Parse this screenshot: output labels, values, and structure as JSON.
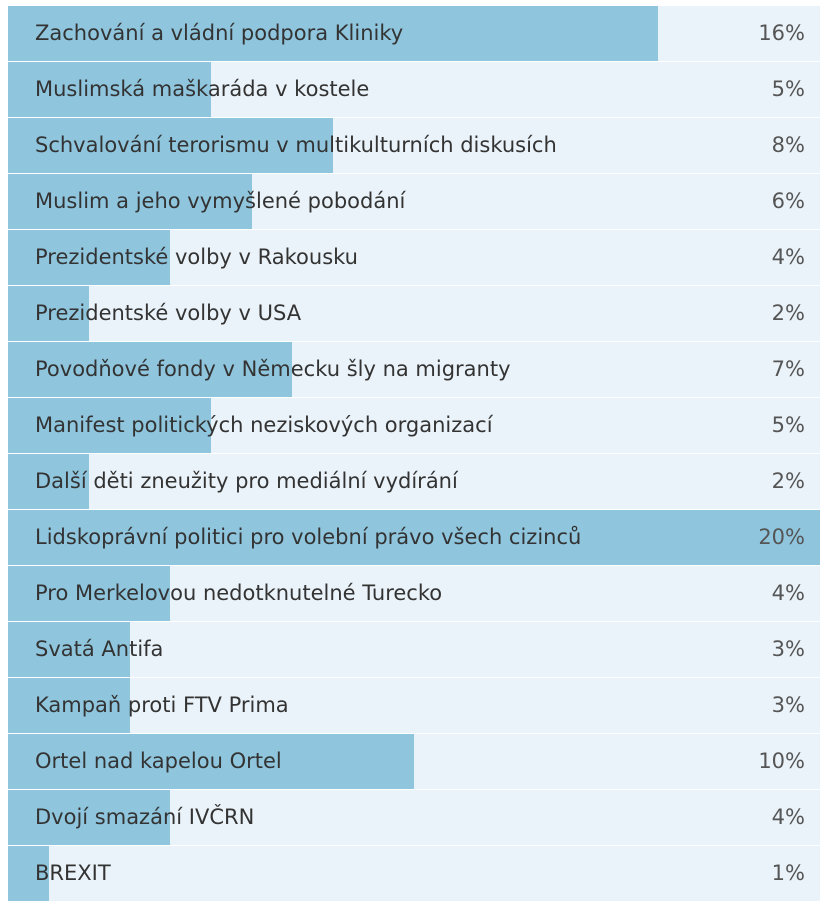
{
  "chart_data": {
    "type": "bar",
    "orientation": "horizontal",
    "categories": [
      "Zachování a vládní podpora Kliniky",
      "Muslimská maškaráda v kostele",
      "Schvalování terorismu v multikulturních diskusích",
      "Muslim a jeho vymyšlené pobodání",
      "Prezidentské volby v Rakousku",
      "Prezidentské volby v USA",
      "Povodňové fondy v Německu šly na migranty",
      "Manifest politických neziskových organizací",
      "Další děti zneužity pro mediální vydírání",
      "Lidskoprávní politici pro volební právo všech cizinců",
      "Pro Merkelovou nedotknutelné Turecko",
      "Svatá Antifa",
      "Kampaň proti FTV Prima",
      "Ortel nad kapelou Ortel",
      "Dvojí smazání IVČRN",
      "BREXIT"
    ],
    "values": [
      16,
      5,
      8,
      6,
      4,
      2,
      7,
      5,
      2,
      20,
      4,
      3,
      3,
      10,
      4,
      1
    ],
    "value_labels": [
      "16%",
      "5%",
      "8%",
      "6%",
      "4%",
      "2%",
      "7%",
      "5%",
      "2%",
      "20%",
      "4%",
      "3%",
      "3%",
      "10%",
      "4%",
      "1%"
    ],
    "color": "#8fc6de",
    "background": "#eaf3f9"
  }
}
